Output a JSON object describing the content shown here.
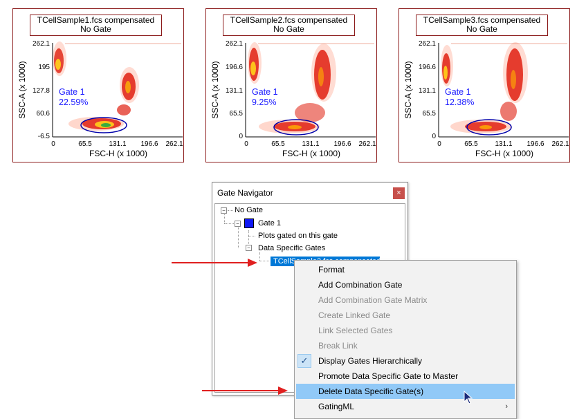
{
  "plots": [
    {
      "title": "TCellSample1.fcs compensated",
      "subtitle": "No Gate",
      "gate_label": "Gate 1",
      "gate_percent": "22.59%",
      "xlabel": "FSC-H (x 1000)",
      "ylabel": "SSC-A (x 1000)",
      "x_ticks": [
        "0",
        "65.5",
        "131.1",
        "196.6",
        "262.1"
      ],
      "y_ticks": [
        "262.1",
        "195",
        "127.8",
        "60.6",
        "-6.5"
      ]
    },
    {
      "title": "TCellSample2.fcs compensated",
      "subtitle": "No Gate",
      "gate_label": "Gate 1",
      "gate_percent": "9.25%",
      "xlabel": "FSC-H (x 1000)",
      "ylabel": "SSC-A (x 1000)",
      "x_ticks": [
        "0",
        "65.5",
        "131.1",
        "196.6",
        "262.1"
      ],
      "y_ticks": [
        "262.1",
        "196.6",
        "131.1",
        "65.5",
        "0"
      ]
    },
    {
      "title": "TCellSample3.fcs compensated",
      "subtitle": "No Gate",
      "gate_label": "Gate 1",
      "gate_percent": "12.38%",
      "xlabel": "FSC-H (x 1000)",
      "ylabel": "SSC-A (x 1000)",
      "x_ticks": [
        "0",
        "65.5",
        "131.1",
        "196.6",
        "262.1"
      ],
      "y_ticks": [
        "262.1",
        "196.6",
        "131.1",
        "65.5",
        "0"
      ]
    }
  ],
  "navigator": {
    "title": "Gate Navigator",
    "close_glyph": "×",
    "tree": {
      "root": "No Gate",
      "gate": "Gate 1",
      "plots_gated": "Plots gated on this gate",
      "data_specific": "Data Specific Gates",
      "selected_item": "TCellSample2.fcs compensated"
    }
  },
  "context_menu": {
    "items": [
      {
        "label": "Format",
        "enabled": true
      },
      {
        "label": "Add Combination Gate",
        "enabled": true
      },
      {
        "label": "Add Combination Gate Matrix",
        "enabled": false
      },
      {
        "label": "Create Linked Gate",
        "enabled": false
      },
      {
        "label": "Link Selected Gates",
        "enabled": false
      },
      {
        "label": "Break Link",
        "enabled": false
      },
      {
        "label": "Display Gates Hierarchically",
        "enabled": true,
        "checked": true
      },
      {
        "label": "Promote Data Specific Gate to Master",
        "enabled": true
      },
      {
        "label": "Delete Data Specific Gate(s)",
        "enabled": true,
        "highlighted": true
      },
      {
        "label": "GatingML",
        "enabled": true,
        "submenu": true
      }
    ],
    "check_glyph": "✓",
    "submenu_glyph": "›"
  },
  "colors": {
    "frame": "#8b1a1a",
    "gate_ellipse": "#0000aa",
    "selection": "#0078d7",
    "menu_hover": "#91c9f7",
    "annotation_arrow": "#e02020"
  },
  "icons": {
    "close": "close-icon",
    "gate_color": "gate-color-swatch",
    "expand": "collapse-icon",
    "check": "check-icon",
    "submenu": "submenu-chevron-icon",
    "cursor": "mouse-cursor-icon"
  }
}
